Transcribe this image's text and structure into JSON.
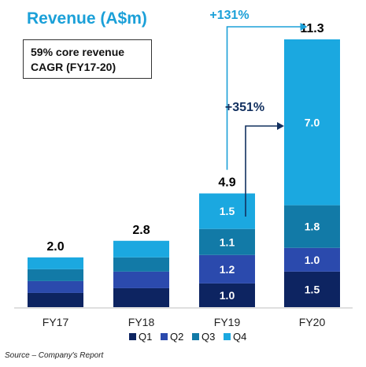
{
  "chart_data": {
    "type": "bar",
    "stacked": true,
    "title": "Revenue (A$m)",
    "categories": [
      "FY17",
      "FY18",
      "FY19",
      "FY20"
    ],
    "series": [
      {
        "name": "Q1",
        "color": "#0d2461",
        "values": [
          0.6,
          0.8,
          1.0,
          1.5
        ]
      },
      {
        "name": "Q2",
        "color": "#2b4aad",
        "values": [
          0.5,
          0.7,
          1.2,
          1.0
        ]
      },
      {
        "name": "Q3",
        "color": "#127aa7",
        "values": [
          0.5,
          0.6,
          1.1,
          1.8
        ]
      },
      {
        "name": "Q4",
        "color": "#1ba8e0",
        "values": [
          0.5,
          0.7,
          1.5,
          7.0
        ]
      }
    ],
    "segment_labels_shown": [
      [
        false,
        false,
        false,
        false
      ],
      [
        false,
        false,
        false,
        false
      ],
      [
        true,
        true,
        true,
        true
      ],
      [
        true,
        true,
        true,
        true
      ]
    ],
    "segment_label_text": [
      [
        "",
        "",
        "",
        ""
      ],
      [
        "",
        "",
        "",
        ""
      ],
      [
        "1.0",
        "1.2",
        "1.1",
        "1.5"
      ],
      [
        "1.5",
        "1.0",
        "1.8",
        "7.0"
      ]
    ],
    "totals": [
      "2.0",
      "2.8",
      "4.9",
      "11.3"
    ],
    "ylim": [
      0,
      11.3
    ],
    "legend_position": "bottom",
    "grid": false,
    "annotations": {
      "growth_total": "+131%",
      "growth_q4": "+351%",
      "callout_line1": "59% core revenue",
      "callout_line2": "CAGR (FY17-20)"
    }
  },
  "source": "Source – Company's Report"
}
